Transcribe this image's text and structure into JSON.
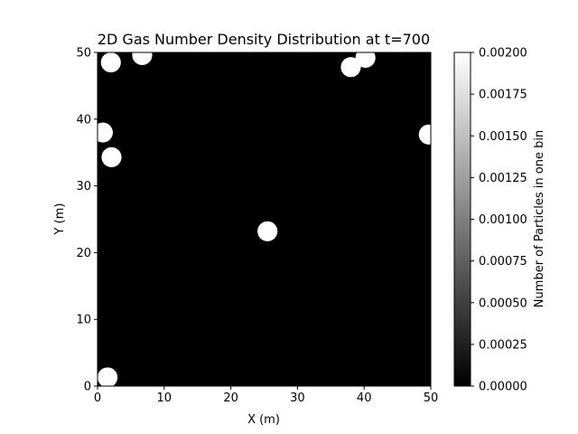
{
  "chart_data": {
    "type": "heatmap",
    "title": "2D Gas Number Density Distribution at t=700",
    "xlabel": "X (m)",
    "ylabel": "Y (m)",
    "xlim": [
      0,
      50
    ],
    "ylim": [
      0,
      50
    ],
    "x_ticks": [
      "0",
      "10",
      "20",
      "30",
      "40",
      "50"
    ],
    "y_ticks": [
      "0",
      "10",
      "20",
      "30",
      "40",
      "50"
    ],
    "colormap": "gray",
    "colorbar": {
      "label": "Number of Particles in one bin",
      "range": [
        0,
        0.002
      ],
      "ticks": [
        "0.00000",
        "0.00025",
        "0.00050",
        "0.00075",
        "0.00100",
        "0.00125",
        "0.00150",
        "0.00175",
        "0.00200"
      ]
    },
    "background_value": 0,
    "blobs": [
      {
        "x": 2.0,
        "y": 48.5,
        "r": 1.5,
        "value": 0.002
      },
      {
        "x": 6.7,
        "y": 49.6,
        "r": 1.5,
        "value": 0.002
      },
      {
        "x": 38.0,
        "y": 47.8,
        "r": 1.5,
        "value": 0.002
      },
      {
        "x": 40.2,
        "y": 49.2,
        "r": 1.5,
        "value": 0.002
      },
      {
        "x": 0.8,
        "y": 38.0,
        "r": 1.5,
        "value": 0.002
      },
      {
        "x": 2.1,
        "y": 34.3,
        "r": 1.5,
        "value": 0.002
      },
      {
        "x": 49.7,
        "y": 37.7,
        "r": 1.5,
        "value": 0.002
      },
      {
        "x": 25.5,
        "y": 23.2,
        "r": 1.5,
        "value": 0.002
      },
      {
        "x": 1.5,
        "y": 1.3,
        "r": 1.5,
        "value": 0.002
      }
    ]
  }
}
